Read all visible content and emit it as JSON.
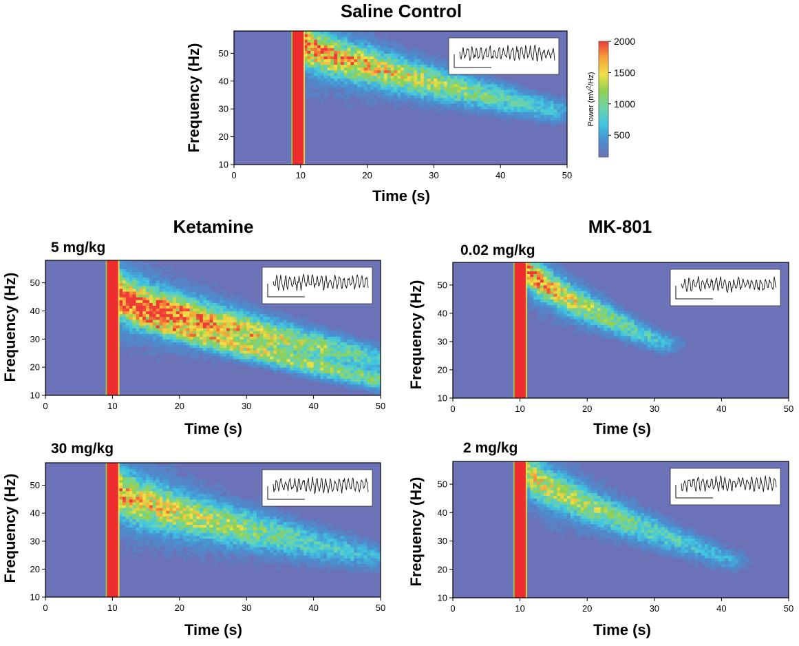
{
  "chart_data": [
    {
      "type": "heatmap",
      "title": "Saline Control",
      "subtitle": "",
      "xlabel": "Time (s)",
      "ylabel": "Frequency (Hz)",
      "xlim": [
        0,
        50
      ],
      "ylim": [
        10,
        58
      ],
      "xticks": [
        0,
        10,
        20,
        30,
        40,
        50
      ],
      "yticks": [
        10,
        20,
        30,
        40,
        50
      ],
      "stimulus_onset_s": 9.6,
      "band": {
        "start_s": 10.5,
        "end_s": 48,
        "f_start_hz": 53,
        "f_end_hz": 29,
        "width_hz": 6.5
      },
      "second_band": null,
      "peak_intensity": 0.8,
      "inset_trace": true
    },
    {
      "type": "heatmap",
      "title": "Ketamine",
      "subtitle": "5 mg/kg",
      "xlabel": "Time (s)",
      "ylabel": "Frequency (Hz)",
      "xlim": [
        0,
        50
      ],
      "ylim": [
        10,
        58
      ],
      "xticks": [
        0,
        10,
        20,
        30,
        40,
        50
      ],
      "yticks": [
        10,
        20,
        30,
        40,
        50
      ],
      "stimulus_onset_s": 10,
      "band": {
        "start_s": 11,
        "end_s": 50,
        "f_start_hz": 45,
        "f_end_hz": 22,
        "width_hz": 7
      },
      "second_band": {
        "start_s": 12,
        "end_s": 50,
        "f_start_hz": 40,
        "f_end_hz": 15,
        "width_hz": 4
      },
      "peak_intensity": 1.0,
      "inset_trace": true
    },
    {
      "type": "heatmap",
      "title": "MK-801",
      "subtitle": "0.02 mg/kg",
      "xlabel": "Time (s)",
      "ylabel": "Frequency (Hz)",
      "xlim": [
        0,
        50
      ],
      "ylim": [
        10,
        58
      ],
      "xticks": [
        0,
        10,
        20,
        30,
        40,
        50
      ],
      "yticks": [
        10,
        20,
        30,
        40,
        50
      ],
      "stimulus_onset_s": 10,
      "band": {
        "start_s": 11,
        "end_s": 31,
        "f_start_hz": 55,
        "f_end_hz": 29,
        "width_hz": 5.5
      },
      "second_band": null,
      "peak_intensity": 0.78,
      "inset_trace": true
    },
    {
      "type": "heatmap",
      "title": "",
      "subtitle": "30 mg/kg",
      "xlabel": "Time (s)",
      "ylabel": "Frequency (Hz)",
      "xlim": [
        0,
        50
      ],
      "ylim": [
        10,
        58
      ],
      "xticks": [
        0,
        10,
        20,
        30,
        40,
        50
      ],
      "yticks": [
        10,
        20,
        30,
        40,
        50
      ],
      "stimulus_onset_s": 10,
      "band": {
        "start_s": 11,
        "end_s": 49,
        "f_start_hz": 47,
        "f_end_hz": 24,
        "width_hz": 7.5
      },
      "second_band": null,
      "peak_intensity": 0.68,
      "inset_trace": true
    },
    {
      "type": "heatmap",
      "title": "",
      "subtitle": "2 mg/kg",
      "xlabel": "Time (s)",
      "ylabel": "Frequency (Hz)",
      "xlim": [
        0,
        50
      ],
      "ylim": [
        10,
        58
      ],
      "xticks": [
        0,
        10,
        20,
        30,
        40,
        50
      ],
      "yticks": [
        10,
        20,
        30,
        40,
        50
      ],
      "stimulus_onset_s": 10,
      "band": {
        "start_s": 11,
        "end_s": 41,
        "f_start_hz": 54,
        "f_end_hz": 23,
        "width_hz": 6
      },
      "second_band": null,
      "peak_intensity": 0.6,
      "inset_trace": true
    }
  ],
  "colorbar": {
    "label_main": "Power (mV",
    "label_sup": "2",
    "label_end": "/Hz)",
    "ticks": [
      500,
      1000,
      1500,
      2000
    ],
    "min": 150,
    "max": 2000,
    "colors": [
      "#6b72b8",
      "#4a8ed0",
      "#3fc6e2",
      "#6fd4a8",
      "#8fd04e",
      "#f0e246",
      "#f7a33a",
      "#ee3b36"
    ]
  }
}
